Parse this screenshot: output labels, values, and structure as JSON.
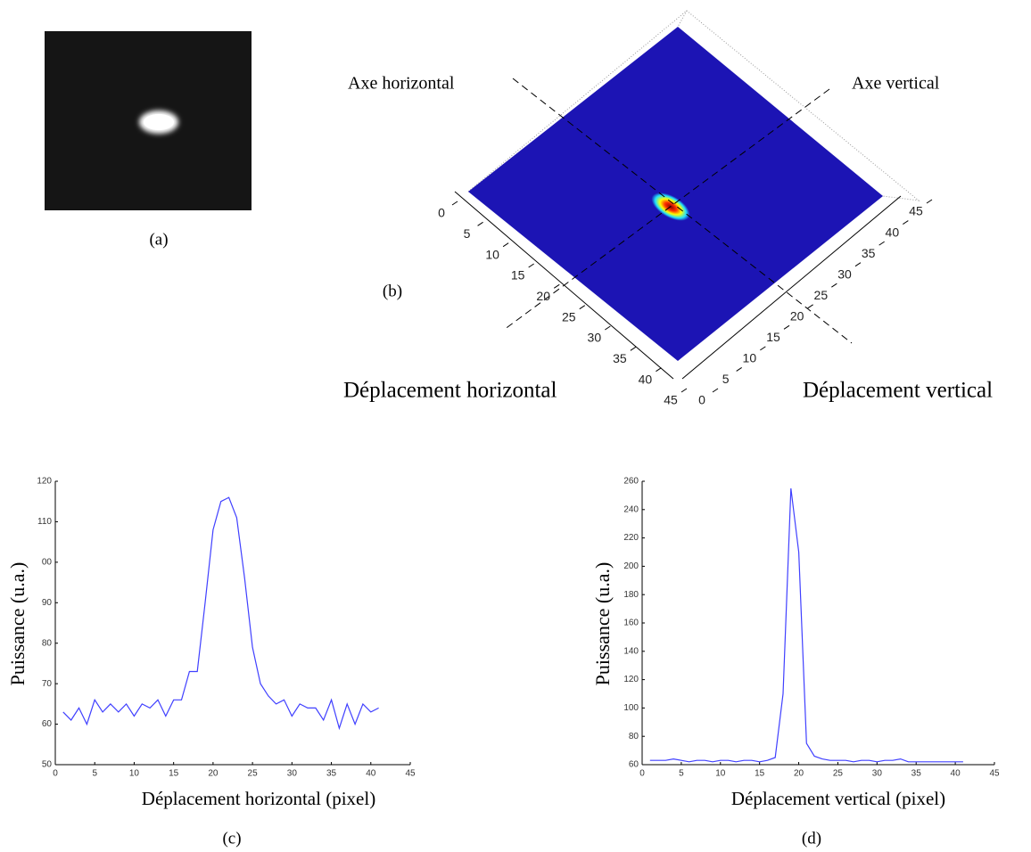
{
  "chart_data": [
    {
      "type": "image",
      "label": "(a)"
    },
    {
      "type": "surface",
      "label": "(b)",
      "xlabel": "Déplacement horizontal",
      "ylabel": "Déplacement vertical",
      "annotations": [
        "Axe horizontal",
        "Axe vertical"
      ],
      "xlim": [
        0,
        45
      ],
      "ylim": [
        0,
        45
      ],
      "xticks": [
        0,
        5,
        10,
        15,
        20,
        25,
        30,
        35,
        40,
        45
      ],
      "yticks": [
        0,
        5,
        10,
        15,
        20,
        25,
        30,
        35,
        40,
        45
      ]
    },
    {
      "type": "line",
      "label": "(c)",
      "xlabel": "Déplacement horizontal (pixel)",
      "ylabel": "Puissance (u.a.)",
      "color": "#4040ff",
      "x": [
        1,
        2,
        3,
        4,
        5,
        6,
        7,
        8,
        9,
        10,
        11,
        12,
        13,
        14,
        15,
        16,
        17,
        18,
        19,
        20,
        21,
        22,
        23,
        24,
        25,
        26,
        27,
        28,
        29,
        30,
        31,
        32,
        33,
        34,
        35,
        36,
        37,
        38,
        39,
        40,
        41
      ],
      "values": [
        63,
        61,
        64,
        60,
        66,
        63,
        65,
        63,
        65,
        62,
        65,
        64,
        66,
        62,
        66,
        66,
        73,
        73,
        90,
        108,
        115,
        116,
        111,
        96,
        79,
        70,
        67,
        65,
        66,
        62,
        65,
        64,
        64,
        61,
        66,
        59,
        65,
        60,
        65,
        63,
        64
      ],
      "xlim": [
        0,
        45
      ],
      "ylim": [
        50,
        120
      ],
      "xticks": [
        0,
        5,
        10,
        15,
        20,
        25,
        30,
        35,
        40,
        45
      ],
      "yticks": [
        50,
        60,
        70,
        80,
        90,
        {
          "value": 100,
          "label": "00"
        },
        110,
        120
      ]
    },
    {
      "type": "line",
      "label": "(d)",
      "xlabel": "Déplacement vertical (pixel)",
      "ylabel": "Puissance (u.a.)",
      "color": "#4040ff",
      "x": [
        1,
        2,
        3,
        4,
        5,
        6,
        7,
        8,
        9,
        10,
        11,
        12,
        13,
        14,
        15,
        16,
        17,
        18,
        19,
        20,
        21,
        22,
        23,
        24,
        25,
        26,
        27,
        28,
        29,
        30,
        31,
        32,
        33,
        34,
        35,
        36,
        37,
        38,
        39,
        40,
        41
      ],
      "values": [
        63,
        63,
        63,
        64,
        63,
        62,
        63,
        63,
        62,
        63,
        63,
        62,
        63,
        63,
        62,
        63,
        65,
        110,
        255,
        210,
        75,
        66,
        64,
        63,
        63,
        63,
        62,
        63,
        63,
        62,
        63,
        63,
        64,
        62,
        62,
        62,
        62,
        62,
        62,
        62,
        62
      ],
      "xlim": [
        0,
        45
      ],
      "ylim": [
        60,
        260
      ],
      "xticks": [
        0,
        5,
        10,
        15,
        20,
        25,
        30,
        35,
        40,
        45
      ],
      "yticks": [
        60,
        80,
        100,
        120,
        140,
        160,
        180,
        200,
        220,
        240,
        260
      ]
    }
  ]
}
